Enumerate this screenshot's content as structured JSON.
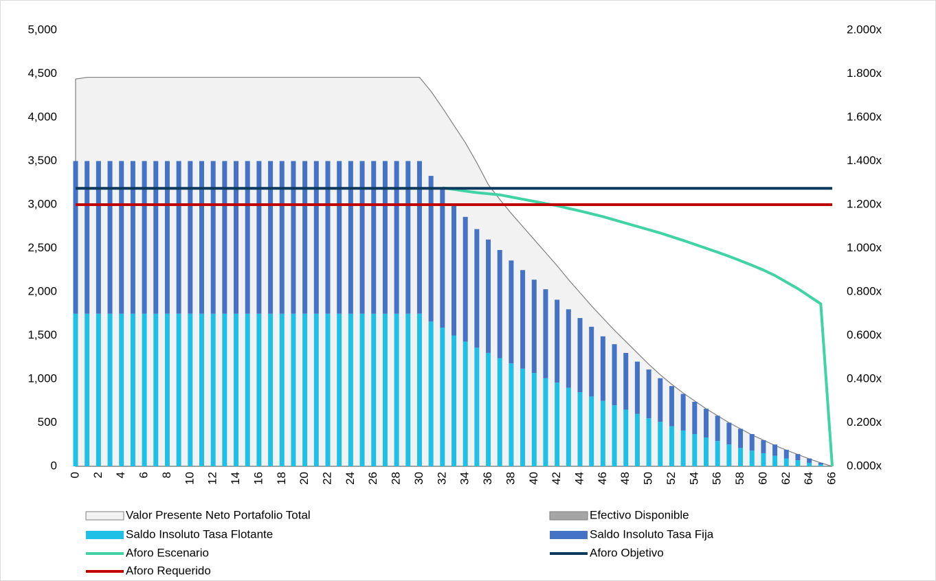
{
  "chart_data": {
    "type": "combo",
    "categories": [
      0,
      null,
      2,
      null,
      4,
      null,
      6,
      null,
      8,
      null,
      10,
      null,
      12,
      null,
      14,
      null,
      16,
      null,
      18,
      null,
      20,
      null,
      22,
      null,
      24,
      null,
      26,
      null,
      28,
      null,
      30,
      null,
      32,
      null,
      34,
      null,
      36,
      null,
      38,
      null,
      40,
      null,
      42,
      null,
      44,
      null,
      46,
      null,
      48,
      null,
      50,
      null,
      52,
      null,
      54,
      null,
      56,
      null,
      58,
      null,
      60,
      null,
      62,
      null,
      64,
      null,
      66
    ],
    "ylim": [
      0,
      5000
    ],
    "yticks": [
      0,
      500,
      {
        "value": 1000,
        "label": "1,000"
      },
      {
        "value": 1500,
        "label": "1,500"
      },
      {
        "value": 2000,
        "label": "2,000"
      },
      {
        "value": 2500,
        "label": "2,500"
      },
      {
        "value": 3000,
        "label": "3,000"
      },
      {
        "value": 3500,
        "label": "3,500"
      },
      {
        "value": 4000,
        "label": "4,000"
      },
      {
        "value": 4500,
        "label": "4,500"
      },
      {
        "value": 5000,
        "label": "5,000"
      }
    ],
    "y2lim": [
      0,
      2
    ],
    "y2ticks": [
      {
        "value": 0,
        "label": "0.000x"
      },
      {
        "value": 0.2,
        "label": "0.200x"
      },
      {
        "value": 0.4,
        "label": "0.400x"
      },
      {
        "value": 0.6,
        "label": "0.600x"
      },
      {
        "value": 0.8,
        "label": "0.800x"
      },
      {
        "value": 1,
        "label": "1.000x"
      },
      {
        "value": 1.2,
        "label": "1.200x"
      },
      {
        "value": 1.4,
        "label": "1.400x"
      },
      {
        "value": 1.6,
        "label": "1.600x"
      },
      {
        "value": 1.8,
        "label": "1.800x"
      },
      {
        "value": 2,
        "label": "2.000x"
      }
    ],
    "legend": "bottom",
    "series": [
      {
        "name": "Valor Presente Neto Portafolio Total",
        "kind": "area",
        "color": "#f2f2f2",
        "edge": "#7f7f7f",
        "values": [
          4440,
          4460,
          4460,
          4460,
          4460,
          4460,
          4460,
          4460,
          4460,
          4460,
          4460,
          4460,
          4460,
          4460,
          4460,
          4460,
          4460,
          4460,
          4460,
          4460,
          4460,
          4460,
          4460,
          4460,
          4460,
          4460,
          4460,
          4460,
          4460,
          4460,
          4460,
          4300,
          4110,
          3910,
          3710,
          3480,
          3230,
          3060,
          2900,
          2750,
          2600,
          2450,
          2300,
          2140,
          1990,
          1840,
          1700,
          1560,
          1430,
          1300,
          1170,
          1050,
          940,
          840,
          750,
          660,
          580,
          500,
          430,
          360,
          300,
          240,
          185,
          135,
          85,
          40,
          0
        ]
      },
      {
        "name": "Efectivo Disponible",
        "kind": "area",
        "color": "#a6a6a6",
        "edge": "#7f7f7f",
        "values": [
          0,
          0,
          0,
          0,
          0,
          0,
          0,
          0,
          0,
          0,
          0,
          0,
          0,
          0,
          0,
          0,
          0,
          0,
          0,
          0,
          0,
          0,
          0,
          0,
          0,
          0,
          0,
          0,
          0,
          0,
          0,
          0,
          0,
          0,
          0,
          0,
          0,
          0,
          0,
          0,
          0,
          0,
          0,
          0,
          0,
          0,
          0,
          0,
          0,
          0,
          0,
          0,
          0,
          0,
          0,
          0,
          0,
          0,
          0,
          0,
          0,
          0,
          0,
          0,
          0,
          0,
          0
        ]
      },
      {
        "name": "Saldo Insoluto Tasa Flotante",
        "kind": "bar",
        "color": "#1ec0e6",
        "values": [
          1750,
          1750,
          1750,
          1750,
          1750,
          1750,
          1750,
          1750,
          1750,
          1750,
          1750,
          1750,
          1750,
          1750,
          1750,
          1750,
          1750,
          1750,
          1750,
          1750,
          1750,
          1750,
          1750,
          1750,
          1750,
          1750,
          1750,
          1750,
          1750,
          1750,
          1750,
          1660,
          1590,
          1500,
          1430,
          1360,
          1300,
          1240,
          1180,
          1120,
          1070,
          1010,
          960,
          900,
          850,
          800,
          750,
          700,
          650,
          600,
          550,
          510,
          460,
          410,
          370,
          330,
          290,
          250,
          210,
          180,
          150,
          120,
          90,
          70,
          40,
          20,
          0
        ]
      },
      {
        "name": "Saldo Insoluto Tasa Fija",
        "kind": "bar",
        "color": "#4472c4",
        "values": [
          1750,
          1750,
          1750,
          1750,
          1750,
          1750,
          1750,
          1750,
          1750,
          1750,
          1750,
          1750,
          1750,
          1750,
          1750,
          1750,
          1750,
          1750,
          1750,
          1750,
          1750,
          1750,
          1750,
          1750,
          1750,
          1750,
          1750,
          1750,
          1750,
          1750,
          1750,
          1670,
          1590,
          1500,
          1430,
          1360,
          1300,
          1240,
          1180,
          1130,
          1070,
          1020,
          950,
          900,
          850,
          800,
          740,
          700,
          650,
          600,
          560,
          500,
          460,
          420,
          370,
          330,
          290,
          250,
          220,
          190,
          150,
          130,
          100,
          70,
          50,
          20,
          0
        ]
      },
      {
        "name": "Aforo Escenario",
        "kind": "line",
        "axis": "y2",
        "color": "#3fd3a6",
        "values": [
          null,
          null,
          null,
          null,
          null,
          null,
          null,
          null,
          null,
          null,
          null,
          null,
          null,
          null,
          null,
          null,
          null,
          null,
          null,
          null,
          null,
          null,
          null,
          null,
          null,
          null,
          null,
          null,
          null,
          null,
          null,
          null,
          1.277,
          1.27,
          1.262,
          1.255,
          1.25,
          1.245,
          1.235,
          1.225,
          1.215,
          1.205,
          1.195,
          1.183,
          1.171,
          1.158,
          1.145,
          1.13,
          1.115,
          1.1,
          1.085,
          1.07,
          1.053,
          1.036,
          1.018,
          1.0,
          0.982,
          0.963,
          0.943,
          0.922,
          0.9,
          0.875,
          0.845,
          0.815,
          0.78,
          0.745,
          0
        ]
      },
      {
        "name": "Aforo Objetivo",
        "kind": "line",
        "axis": "y2",
        "color": "#0d3a5c",
        "values": [
          1.275,
          1.275,
          1.275,
          1.275,
          1.275,
          1.275,
          1.275,
          1.275,
          1.275,
          1.275,
          1.275,
          1.275,
          1.275,
          1.275,
          1.275,
          1.275,
          1.275,
          1.275,
          1.275,
          1.275,
          1.275,
          1.275,
          1.275,
          1.275,
          1.275,
          1.275,
          1.275,
          1.275,
          1.275,
          1.275,
          1.275,
          1.275,
          1.275,
          1.275,
          1.275,
          1.275,
          1.275,
          1.275,
          1.275,
          1.275,
          1.275,
          1.275,
          1.275,
          1.275,
          1.275,
          1.275,
          1.275,
          1.275,
          1.275,
          1.275,
          1.275,
          1.275,
          1.275,
          1.275,
          1.275,
          1.275,
          1.275,
          1.275,
          1.275,
          1.275,
          1.275,
          1.275,
          1.275,
          1.275,
          1.275,
          1.275,
          1.275
        ]
      },
      {
        "name": "Aforo Requerido",
        "kind": "line",
        "axis": "y2",
        "color": "#c00000",
        "values": [
          1.2,
          1.2,
          1.2,
          1.2,
          1.2,
          1.2,
          1.2,
          1.2,
          1.2,
          1.2,
          1.2,
          1.2,
          1.2,
          1.2,
          1.2,
          1.2,
          1.2,
          1.2,
          1.2,
          1.2,
          1.2,
          1.2,
          1.2,
          1.2,
          1.2,
          1.2,
          1.2,
          1.2,
          1.2,
          1.2,
          1.2,
          1.2,
          1.2,
          1.2,
          1.2,
          1.2,
          1.2,
          1.2,
          1.2,
          1.2,
          1.2,
          1.2,
          1.2,
          1.2,
          1.2,
          1.2,
          1.2,
          1.2,
          1.2,
          1.2,
          1.2,
          1.2,
          1.2,
          1.2,
          1.2,
          1.2,
          1.2,
          1.2,
          1.2,
          1.2,
          1.2,
          1.2,
          1.2,
          1.2,
          1.2,
          1.2,
          1.2
        ]
      }
    ]
  }
}
